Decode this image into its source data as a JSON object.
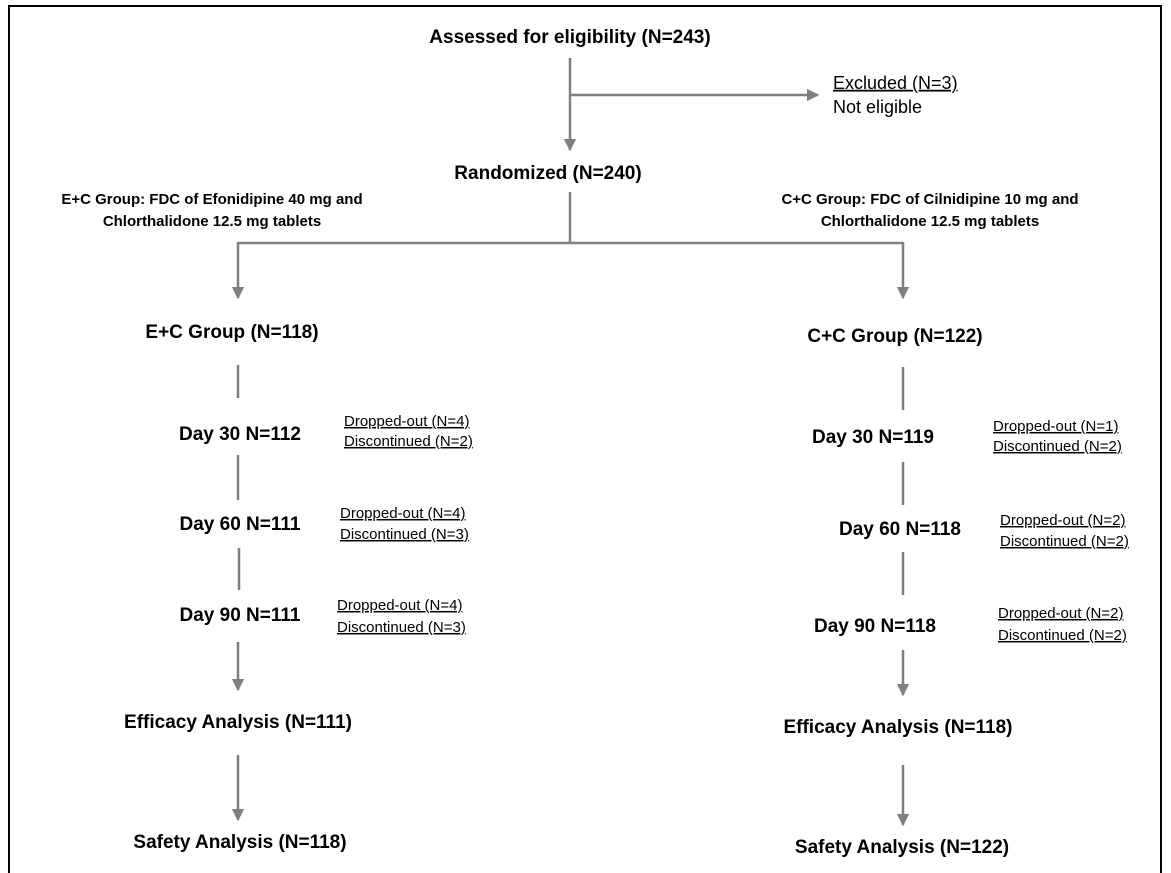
{
  "top": "Assessed for eligibility (N=243)",
  "excluded": {
    "title": "Excluded (N=3)",
    "reason": "Not eligible"
  },
  "randomized": "Randomized (N=240)",
  "arms": [
    {
      "description": [
        "E+C Group: FDC of Efonidipine 40 mg and",
        "Chlorthalidone 12.5 mg tablets"
      ],
      "group": "E+C Group (N=118)",
      "visits": [
        {
          "label": "Day 30 N=112",
          "dropped": "Dropped-out (N=4)",
          "discontinued": "Discontinued (N=2)"
        },
        {
          "label": "Day 60 N=111",
          "dropped": "Dropped-out (N=4)",
          "discontinued": "Discontinued (N=3)"
        },
        {
          "label": "Day 90 N=111",
          "dropped": "Dropped-out (N=4)",
          "discontinued": "Discontinued (N=3)"
        }
      ],
      "efficacy": "Efficacy Analysis (N=111)",
      "safety": "Safety Analysis (N=118)"
    },
    {
      "description": [
        "C+C Group: FDC of Cilnidipine 10 mg and",
        "Chlorthalidone 12.5 mg tablets"
      ],
      "group": "C+C Group (N=122)",
      "visits": [
        {
          "label": "Day 30 N=119",
          "dropped": "Dropped-out (N=1)",
          "discontinued": "Discontinued (N=2)"
        },
        {
          "label": "Day 60 N=118",
          "dropped": "Dropped-out (N=2)",
          "discontinued": "Discontinued (N=2)"
        },
        {
          "label": "Day 90 N=118",
          "dropped": "Dropped-out (N=2)",
          "discontinued": "Discontinued (N=2)"
        }
      ],
      "efficacy": "Efficacy Analysis (N=118)",
      "safety": "Safety Analysis (N=122)"
    }
  ]
}
